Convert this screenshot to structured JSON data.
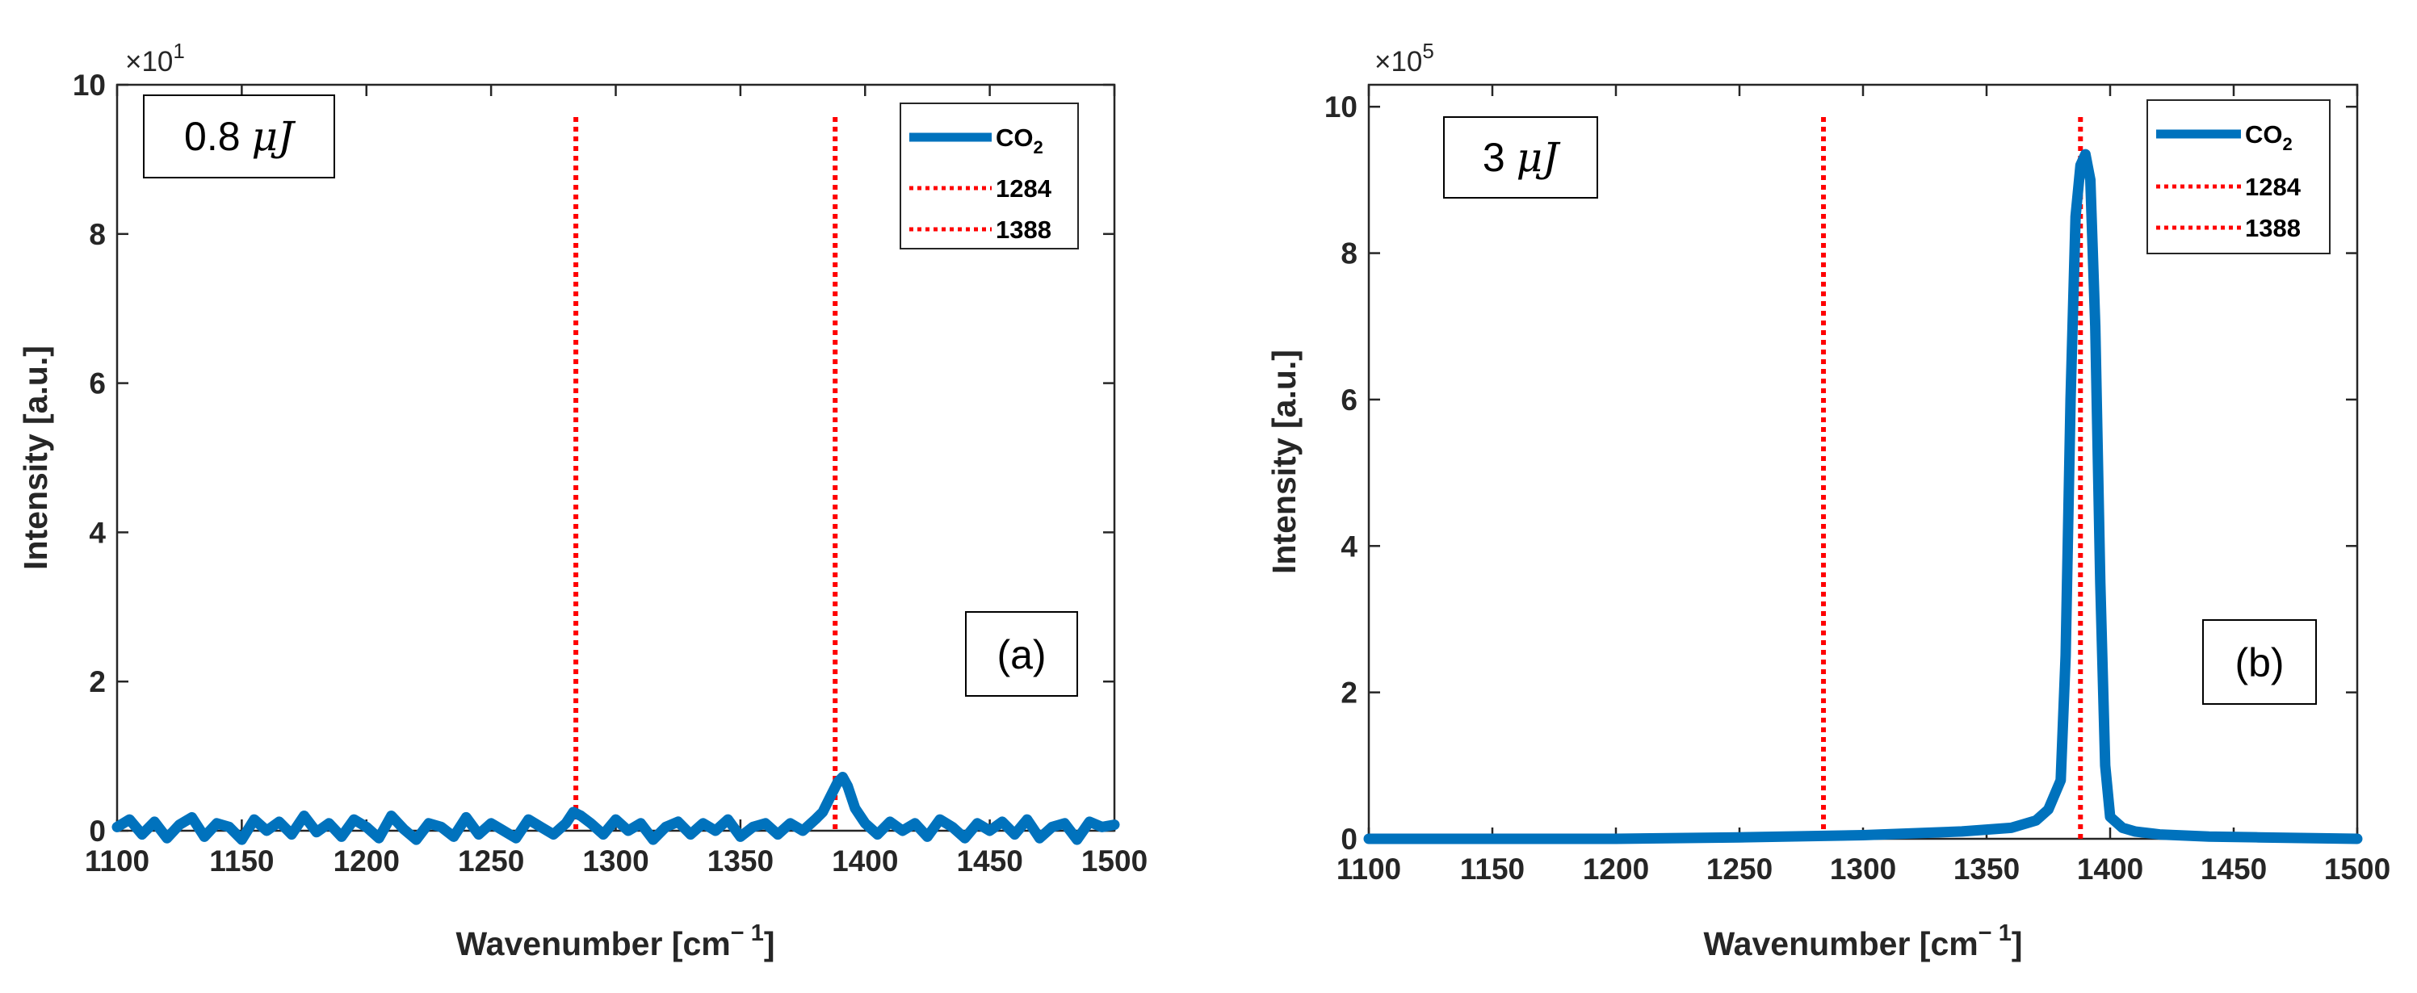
{
  "chart_data": [
    {
      "type": "line",
      "panel": "a",
      "title": "",
      "xlabel": "Wavenumber [cm",
      "xlabel_sup": "− 1",
      "xlabel_end": "]",
      "ylabel": "Intensity [a.u.]",
      "xlim": [
        1100,
        1500
      ],
      "ylim": [
        0,
        10
      ],
      "y_exponent_label": "×10",
      "y_exponent": "1",
      "xticks": [
        1100,
        1150,
        1200,
        1250,
        1300,
        1350,
        1400,
        1450,
        1500
      ],
      "xtick_labels": [
        "1100",
        "1150",
        "1200",
        "1250",
        "1300",
        "1350",
        "1400",
        "1450",
        "1500"
      ],
      "yticks": [
        0,
        2,
        4,
        6,
        8,
        10
      ],
      "ytick_labels": [
        "0",
        "2",
        "4",
        "6",
        "8",
        "10"
      ],
      "annotation_energy": "0.8",
      "annotation_unit": "μJ",
      "panel_label": "(a)",
      "legend": {
        "position": "top-right",
        "co2_main": "CO",
        "co2_sub": "2",
        "entries": [
          "1284",
          "1388"
        ]
      },
      "vlines": [
        {
          "name": "1284",
          "x": 1284,
          "color": "#ff0000"
        },
        {
          "name": "1388",
          "x": 1388,
          "color": "#ff0000"
        }
      ],
      "series": [
        {
          "name": "CO2",
          "color": "#0072bd",
          "x": [
            1100,
            1105,
            1110,
            1115,
            1120,
            1125,
            1130,
            1135,
            1140,
            1145,
            1150,
            1155,
            1160,
            1165,
            1170,
            1175,
            1180,
            1185,
            1190,
            1195,
            1200,
            1205,
            1210,
            1215,
            1220,
            1225,
            1230,
            1235,
            1240,
            1245,
            1250,
            1255,
            1260,
            1265,
            1270,
            1275,
            1280,
            1283,
            1286,
            1290,
            1295,
            1300,
            1305,
            1310,
            1315,
            1320,
            1325,
            1330,
            1335,
            1340,
            1345,
            1350,
            1355,
            1360,
            1365,
            1370,
            1375,
            1380,
            1383,
            1386,
            1389,
            1391,
            1393,
            1396,
            1400,
            1405,
            1410,
            1415,
            1420,
            1425,
            1430,
            1435,
            1440,
            1445,
            1450,
            1455,
            1460,
            1465,
            1470,
            1475,
            1480,
            1485,
            1490,
            1495,
            1500
          ],
          "y": [
            0.05,
            0.15,
            -0.05,
            0.12,
            -0.1,
            0.08,
            0.18,
            -0.08,
            0.1,
            0.05,
            -0.12,
            0.15,
            0.0,
            0.12,
            -0.05,
            0.2,
            -0.02,
            0.1,
            -0.08,
            0.15,
            0.05,
            -0.1,
            0.2,
            0.02,
            -0.12,
            0.1,
            0.05,
            -0.08,
            0.18,
            -0.05,
            0.1,
            0.0,
            -0.1,
            0.15,
            0.05,
            -0.05,
            0.1,
            0.25,
            0.2,
            0.1,
            -0.05,
            0.15,
            0.0,
            0.1,
            -0.12,
            0.05,
            0.12,
            -0.05,
            0.1,
            0.0,
            0.15,
            -0.08,
            0.05,
            0.1,
            -0.05,
            0.1,
            0.0,
            0.15,
            0.25,
            0.45,
            0.65,
            0.72,
            0.6,
            0.3,
            0.1,
            -0.05,
            0.12,
            0.0,
            0.1,
            -0.08,
            0.15,
            0.05,
            -0.1,
            0.1,
            0.0,
            0.12,
            -0.05,
            0.15,
            -0.1,
            0.05,
            0.1,
            -0.12,
            0.12,
            0.05,
            0.08
          ]
        }
      ]
    },
    {
      "type": "line",
      "panel": "b",
      "title": "",
      "xlabel": "Wavenumber [cm",
      "xlabel_sup": "− 1",
      "xlabel_end": "]",
      "ylabel": "Intensity [a.u.]",
      "xlim": [
        1100,
        1500
      ],
      "ylim": [
        0,
        10.3
      ],
      "y_exponent_label": "×10",
      "y_exponent": "5",
      "xticks": [
        1100,
        1150,
        1200,
        1250,
        1300,
        1350,
        1400,
        1450,
        1500
      ],
      "xtick_labels": [
        "1100",
        "1150",
        "1200",
        "1250",
        "1300",
        "1350",
        "1400",
        "1450",
        "1500"
      ],
      "yticks": [
        0,
        2,
        4,
        6,
        8,
        10
      ],
      "ytick_labels": [
        "0",
        "2",
        "4",
        "6",
        "8",
        "10"
      ],
      "annotation_energy": "3",
      "annotation_unit": "μJ",
      "panel_label": "(b)",
      "legend": {
        "position": "top-right",
        "co2_main": "CO",
        "co2_sub": "2",
        "entries": [
          "1284",
          "1388"
        ]
      },
      "vlines": [
        {
          "name": "1284",
          "x": 1284,
          "color": "#ff0000"
        },
        {
          "name": "1388",
          "x": 1388,
          "color": "#ff0000"
        }
      ],
      "series": [
        {
          "name": "CO2",
          "color": "#0072bd",
          "x": [
            1100,
            1150,
            1200,
            1250,
            1300,
            1340,
            1360,
            1370,
            1375,
            1380,
            1382,
            1384,
            1386,
            1388,
            1390,
            1392,
            1394,
            1396,
            1398,
            1400,
            1405,
            1410,
            1420,
            1440,
            1460,
            1480,
            1500
          ],
          "y": [
            0.0,
            0.0,
            0.0,
            0.02,
            0.05,
            0.1,
            0.15,
            0.25,
            0.4,
            0.8,
            2.5,
            6.0,
            8.5,
            9.2,
            9.35,
            9.0,
            7.0,
            3.5,
            1.0,
            0.3,
            0.15,
            0.1,
            0.06,
            0.03,
            0.02,
            0.01,
            0.0
          ]
        }
      ]
    }
  ]
}
